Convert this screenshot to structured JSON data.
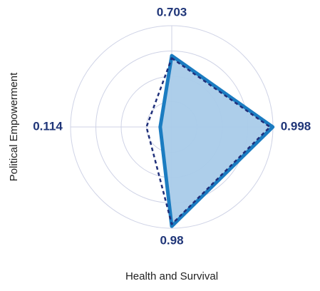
{
  "chart_data": {
    "type": "radar",
    "categories": [
      null,
      null,
      "Health and Survival",
      "Political Empowerment"
    ],
    "rlim": [
      0,
      1
    ],
    "rticks": [
      0.25,
      0.5,
      0.75,
      1
    ],
    "series": [
      {
        "color": "#1b7cc1",
        "fill": "#a9cbe9",
        "values": [
          0.703,
          0.998,
          0.98,
          0.114
        ]
      },
      {
        "color": "#1f2f7a",
        "dashed": true,
        "values": [
          0.68,
          0.97,
          0.96,
          0.25
        ]
      }
    ]
  }
}
